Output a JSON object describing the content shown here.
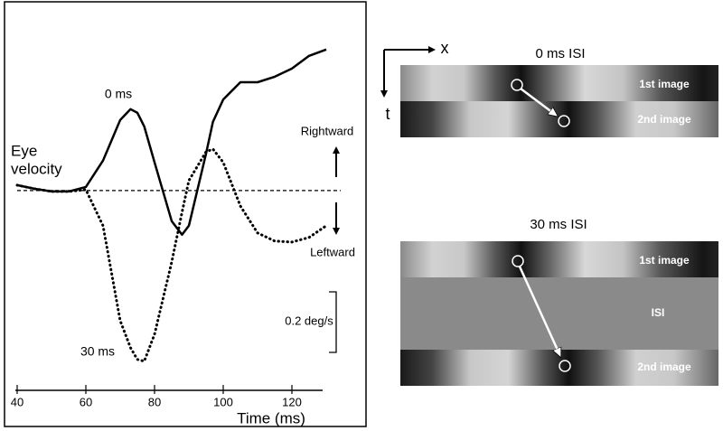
{
  "chart_data": {
    "type": "line",
    "xlabel": "Time (ms)",
    "ylabel_lines": [
      "Eye",
      "velocity"
    ],
    "x": [
      40,
      45,
      50,
      55,
      60,
      65,
      70,
      73,
      75,
      77,
      80,
      85,
      88,
      90,
      95,
      97,
      100,
      105,
      110,
      115,
      120,
      125,
      130
    ],
    "series": [
      {
        "name": "0 ms",
        "color": "#000000",
        "style": "solid",
        "values": [
          0.018,
          0.006,
          -0.003,
          -0.003,
          0.012,
          0.099,
          0.233,
          0.269,
          0.257,
          0.212,
          0.093,
          -0.101,
          -0.146,
          -0.116,
          0.122,
          0.227,
          0.301,
          0.358,
          0.358,
          0.376,
          0.403,
          0.445,
          0.466
        ]
      },
      {
        "name": "30 ms",
        "color": "#000000",
        "style": "dotted",
        "values": [
          0.018,
          0.006,
          -0.003,
          -0.003,
          0.003,
          -0.116,
          -0.43,
          -0.519,
          -0.558,
          -0.564,
          -0.475,
          -0.236,
          -0.072,
          0.033,
          0.128,
          0.137,
          0.093,
          -0.051,
          -0.14,
          -0.167,
          -0.17,
          -0.155,
          -0.116
        ]
      }
    ],
    "xlim": [
      40,
      130
    ],
    "xticks": [
      40,
      60,
      80,
      100,
      120
    ],
    "ylim": [
      -0.66,
      0.54
    ],
    "baseline": 0,
    "annotations": {
      "up": "Rightward",
      "down": "Leftward"
    },
    "scale_bar": {
      "value": 0.2,
      "label": "0.2 deg/s"
    }
  },
  "diagram": {
    "axes": {
      "x": "x",
      "t": "t"
    },
    "panels": [
      {
        "title": "0 ms ISI",
        "rows": [
          "1st image",
          "2nd image"
        ]
      },
      {
        "title": "30 ms ISI",
        "rows": [
          "1st image",
          "ISI",
          "2nd image"
        ]
      }
    ]
  }
}
